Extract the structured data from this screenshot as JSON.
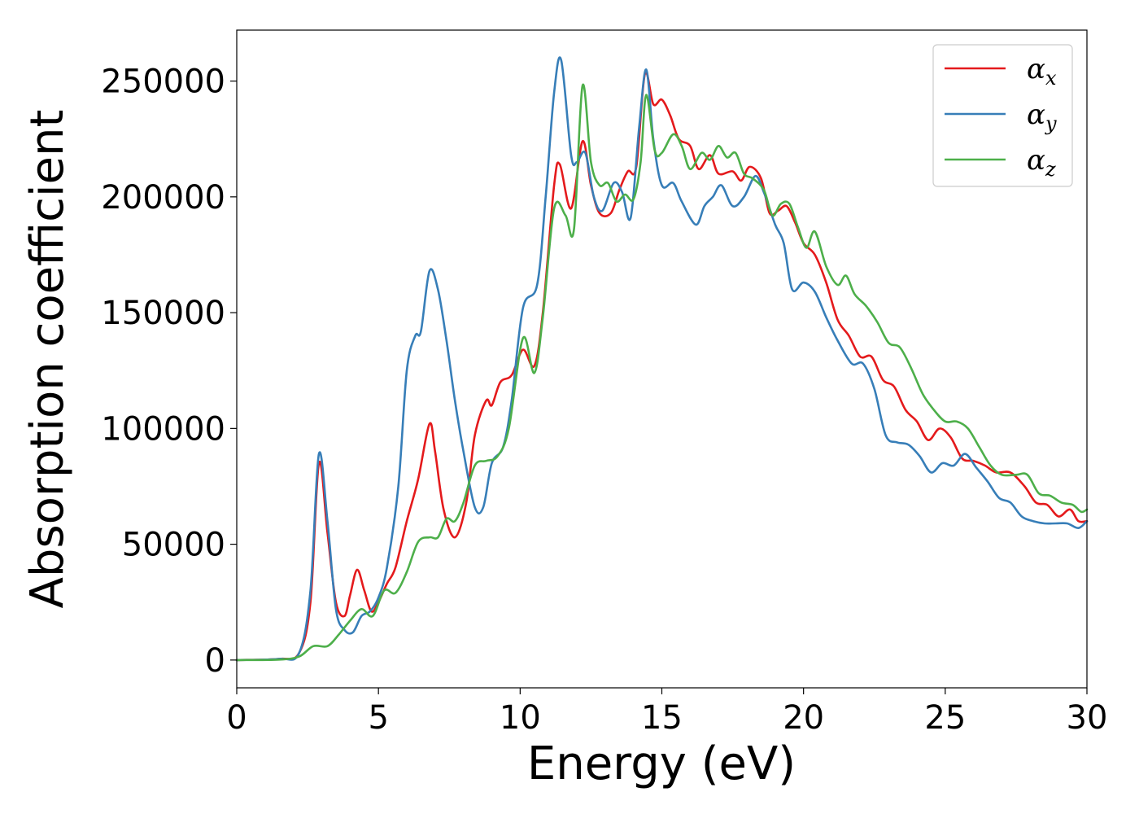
{
  "chart_data": {
    "type": "line",
    "title": "",
    "xlabel": "Energy (eV)",
    "ylabel": "Absorption coefficient",
    "xlim": [
      0,
      30
    ],
    "ylim": [
      -12000,
      272000
    ],
    "xticks": [
      0,
      5,
      10,
      15,
      20,
      25,
      30
    ],
    "xtick_labels": [
      "0",
      "5",
      "10",
      "15",
      "20",
      "25",
      "30"
    ],
    "yticks": [
      0,
      50000,
      100000,
      150000,
      200000,
      250000
    ],
    "ytick_labels": [
      "0",
      "50000",
      "100000",
      "150000",
      "200000",
      "250000"
    ],
    "grid": false,
    "legend_position": "top-right",
    "series": [
      {
        "name": "α",
        "subscript": "x",
        "color": "#e41a1c",
        "points": [
          [
            0,
            0
          ],
          [
            1.5,
            500
          ],
          [
            2.2,
            3000
          ],
          [
            2.6,
            25000
          ],
          [
            2.9,
            85000
          ],
          [
            3.2,
            55000
          ],
          [
            3.5,
            25000
          ],
          [
            3.8,
            19000
          ],
          [
            4.0,
            28000
          ],
          [
            4.25,
            39000
          ],
          [
            4.5,
            30000
          ],
          [
            4.75,
            21000
          ],
          [
            5.0,
            25000
          ],
          [
            5.3,
            33000
          ],
          [
            5.6,
            40000
          ],
          [
            6.0,
            60000
          ],
          [
            6.4,
            78000
          ],
          [
            6.8,
            102000
          ],
          [
            7.0,
            90000
          ],
          [
            7.3,
            65000
          ],
          [
            7.7,
            53000
          ],
          [
            8.1,
            68000
          ],
          [
            8.4,
            97000
          ],
          [
            8.8,
            112000
          ],
          [
            9.0,
            110000
          ],
          [
            9.3,
            120000
          ],
          [
            9.7,
            123000
          ],
          [
            10.1,
            134000
          ],
          [
            10.5,
            127000
          ],
          [
            10.8,
            150000
          ],
          [
            11.2,
            205000
          ],
          [
            11.4,
            214000
          ],
          [
            11.8,
            195000
          ],
          [
            12.2,
            224000
          ],
          [
            12.5,
            205000
          ],
          [
            12.8,
            193000
          ],
          [
            13.2,
            193000
          ],
          [
            13.5,
            203000
          ],
          [
            13.8,
            211000
          ],
          [
            14.1,
            213000
          ],
          [
            14.4,
            253000
          ],
          [
            14.7,
            240000
          ],
          [
            15.0,
            242000
          ],
          [
            15.3,
            235000
          ],
          [
            15.6,
            225000
          ],
          [
            16.0,
            222000
          ],
          [
            16.3,
            212000
          ],
          [
            16.7,
            218000
          ],
          [
            17.0,
            210000
          ],
          [
            17.5,
            211000
          ],
          [
            17.8,
            207000
          ],
          [
            18.1,
            213000
          ],
          [
            18.5,
            208000
          ],
          [
            18.8,
            193000
          ],
          [
            19.1,
            194000
          ],
          [
            19.4,
            196000
          ],
          [
            19.7,
            189000
          ],
          [
            20.0,
            180000
          ],
          [
            20.4,
            175000
          ],
          [
            20.8,
            163000
          ],
          [
            21.2,
            147000
          ],
          [
            21.6,
            140000
          ],
          [
            22.0,
            131000
          ],
          [
            22.4,
            131000
          ],
          [
            22.8,
            121000
          ],
          [
            23.2,
            118000
          ],
          [
            23.6,
            108000
          ],
          [
            24.0,
            103000
          ],
          [
            24.4,
            95000
          ],
          [
            24.8,
            100000
          ],
          [
            25.2,
            96000
          ],
          [
            25.6,
            87000
          ],
          [
            26.0,
            86000
          ],
          [
            26.4,
            84000
          ],
          [
            26.8,
            81000
          ],
          [
            27.3,
            81000
          ],
          [
            27.8,
            75000
          ],
          [
            28.2,
            68000
          ],
          [
            28.6,
            67000
          ],
          [
            29.0,
            62000
          ],
          [
            29.4,
            65000
          ],
          [
            29.7,
            60000
          ],
          [
            30,
            60000
          ]
        ]
      },
      {
        "name": "α",
        "subscript": "y",
        "color": "#377eb8",
        "points": [
          [
            0,
            0
          ],
          [
            1.5,
            500
          ],
          [
            2.2,
            3000
          ],
          [
            2.6,
            30000
          ],
          [
            2.9,
            89000
          ],
          [
            3.2,
            60000
          ],
          [
            3.5,
            22000
          ],
          [
            3.8,
            13000
          ],
          [
            4.1,
            12000
          ],
          [
            4.4,
            19000
          ],
          [
            4.7,
            21000
          ],
          [
            5.0,
            27000
          ],
          [
            5.3,
            40000
          ],
          [
            5.7,
            75000
          ],
          [
            6.0,
            125000
          ],
          [
            6.3,
            140000
          ],
          [
            6.5,
            142000
          ],
          [
            6.8,
            168000
          ],
          [
            7.1,
            160000
          ],
          [
            7.4,
            138000
          ],
          [
            7.7,
            112000
          ],
          [
            8.0,
            90000
          ],
          [
            8.4,
            66000
          ],
          [
            8.7,
            66000
          ],
          [
            9.0,
            85000
          ],
          [
            9.4,
            92000
          ],
          [
            9.7,
            112000
          ],
          [
            10.1,
            152000
          ],
          [
            10.6,
            162000
          ],
          [
            10.9,
            200000
          ],
          [
            11.2,
            245000
          ],
          [
            11.45,
            259000
          ],
          [
            11.8,
            218000
          ],
          [
            12.0,
            215000
          ],
          [
            12.3,
            219000
          ],
          [
            12.6,
            200000
          ],
          [
            12.9,
            194000
          ],
          [
            13.3,
            206000
          ],
          [
            13.6,
            202000
          ],
          [
            13.9,
            191000
          ],
          [
            14.2,
            230000
          ],
          [
            14.45,
            255000
          ],
          [
            14.7,
            225000
          ],
          [
            15.0,
            205000
          ],
          [
            15.4,
            206000
          ],
          [
            15.7,
            198000
          ],
          [
            16.2,
            188000
          ],
          [
            16.5,
            196000
          ],
          [
            16.8,
            200000
          ],
          [
            17.1,
            205000
          ],
          [
            17.5,
            196000
          ],
          [
            17.9,
            200000
          ],
          [
            18.3,
            209000
          ],
          [
            18.6,
            202000
          ],
          [
            19.0,
            188000
          ],
          [
            19.3,
            180000
          ],
          [
            19.6,
            160000
          ],
          [
            20.0,
            163000
          ],
          [
            20.4,
            159000
          ],
          [
            20.8,
            148000
          ],
          [
            21.2,
            138000
          ],
          [
            21.7,
            128000
          ],
          [
            22.1,
            128000
          ],
          [
            22.5,
            117000
          ],
          [
            22.9,
            97000
          ],
          [
            23.3,
            94000
          ],
          [
            23.7,
            93000
          ],
          [
            24.1,
            88000
          ],
          [
            24.5,
            81000
          ],
          [
            24.9,
            85000
          ],
          [
            25.3,
            84000
          ],
          [
            25.7,
            89000
          ],
          [
            26.1,
            83000
          ],
          [
            26.5,
            77000
          ],
          [
            26.9,
            70000
          ],
          [
            27.3,
            68000
          ],
          [
            27.7,
            62000
          ],
          [
            28.1,
            60000
          ],
          [
            28.5,
            59000
          ],
          [
            28.9,
            59000
          ],
          [
            29.3,
            59000
          ],
          [
            29.7,
            57000
          ],
          [
            30,
            60000
          ]
        ]
      },
      {
        "name": "α",
        "subscript": "z",
        "color": "#4daf4a",
        "points": [
          [
            0,
            0
          ],
          [
            1.5,
            200
          ],
          [
            2.2,
            1500
          ],
          [
            2.7,
            6000
          ],
          [
            3.2,
            6000
          ],
          [
            3.6,
            11000
          ],
          [
            4.0,
            17000
          ],
          [
            4.4,
            22000
          ],
          [
            4.8,
            19000
          ],
          [
            5.2,
            30000
          ],
          [
            5.6,
            29000
          ],
          [
            6.0,
            38000
          ],
          [
            6.4,
            51000
          ],
          [
            6.8,
            53000
          ],
          [
            7.1,
            53000
          ],
          [
            7.4,
            61000
          ],
          [
            7.7,
            60000
          ],
          [
            8.0,
            68000
          ],
          [
            8.4,
            84000
          ],
          [
            8.8,
            86000
          ],
          [
            9.2,
            88000
          ],
          [
            9.6,
            100000
          ],
          [
            10.1,
            139000
          ],
          [
            10.5,
            124000
          ],
          [
            10.8,
            148000
          ],
          [
            11.2,
            195000
          ],
          [
            11.6,
            192000
          ],
          [
            11.9,
            186000
          ],
          [
            12.2,
            248000
          ],
          [
            12.5,
            215000
          ],
          [
            12.8,
            205000
          ],
          [
            13.1,
            206000
          ],
          [
            13.4,
            198000
          ],
          [
            13.7,
            201000
          ],
          [
            14.0,
            199000
          ],
          [
            14.25,
            215000
          ],
          [
            14.45,
            244000
          ],
          [
            14.75,
            220000
          ],
          [
            15.0,
            219000
          ],
          [
            15.4,
            227000
          ],
          [
            15.7,
            222000
          ],
          [
            16.0,
            212000
          ],
          [
            16.4,
            219000
          ],
          [
            16.7,
            216000
          ],
          [
            17.0,
            222000
          ],
          [
            17.3,
            217000
          ],
          [
            17.6,
            219000
          ],
          [
            17.9,
            210000
          ],
          [
            18.2,
            208000
          ],
          [
            18.6,
            203000
          ],
          [
            18.9,
            192000
          ],
          [
            19.2,
            197000
          ],
          [
            19.5,
            197000
          ],
          [
            19.8,
            187000
          ],
          [
            20.1,
            178000
          ],
          [
            20.4,
            185000
          ],
          [
            20.8,
            170000
          ],
          [
            21.2,
            162000
          ],
          [
            21.5,
            166000
          ],
          [
            21.8,
            158000
          ],
          [
            22.2,
            153000
          ],
          [
            22.6,
            146000
          ],
          [
            23.0,
            137000
          ],
          [
            23.4,
            135000
          ],
          [
            23.8,
            126000
          ],
          [
            24.2,
            115000
          ],
          [
            24.6,
            108000
          ],
          [
            25.0,
            103000
          ],
          [
            25.4,
            103000
          ],
          [
            25.8,
            100000
          ],
          [
            26.2,
            92000
          ],
          [
            26.6,
            84000
          ],
          [
            27.0,
            80000
          ],
          [
            27.5,
            80000
          ],
          [
            27.9,
            80000
          ],
          [
            28.3,
            72000
          ],
          [
            28.7,
            71000
          ],
          [
            29.1,
            68000
          ],
          [
            29.5,
            67000
          ],
          [
            29.8,
            64000
          ],
          [
            30,
            65000
          ]
        ]
      }
    ]
  }
}
